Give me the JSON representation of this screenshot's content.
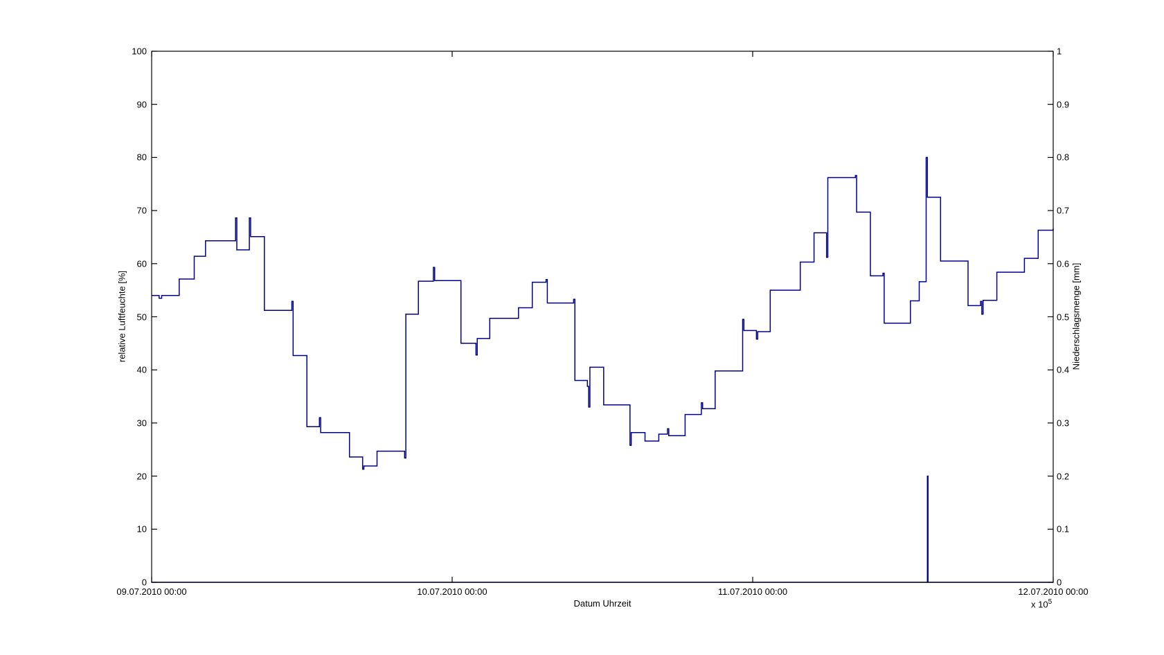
{
  "figure": {
    "background": "#ffffff",
    "axis_color": "#000000",
    "line_color": "#00008B"
  },
  "chart_data": {
    "type": "line",
    "subtype": "stairs",
    "title": "",
    "xlabel": "Datum Uhrzeit",
    "x_exponent_label": "x 10",
    "x_exponent_power": "5",
    "ylabel_left": "relative Luftfeuchte [%]",
    "ylabel_right": "Niederschlagsmenge [mm]",
    "grid": false,
    "legend": "none",
    "x_axis": {
      "unit": "hours from 09.07.2010 00:00",
      "range_hours": [
        0,
        72
      ],
      "tick_hours": [
        0,
        24,
        48,
        72
      ],
      "tick_labels": [
        "09.07.2010 00:00",
        "10.07.2010 00:00",
        "11.07.2010 00:00",
        "12.07.2010 00:00"
      ]
    },
    "y_axis_left": {
      "range": [
        0,
        100
      ],
      "tick_values": [
        0,
        10,
        20,
        30,
        40,
        50,
        60,
        70,
        80,
        90,
        100
      ],
      "tick_labels": [
        "0",
        "10",
        "20",
        "30",
        "40",
        "50",
        "60",
        "70",
        "80",
        "90",
        "100"
      ]
    },
    "y_axis_right": {
      "range": [
        0,
        1
      ],
      "tick_values": [
        0,
        0.1,
        0.2,
        0.3,
        0.4,
        0.5,
        0.6,
        0.7,
        0.8,
        0.9,
        1
      ],
      "tick_labels": [
        "0",
        "0.1",
        "0.2",
        "0.3",
        "0.4",
        "0.5",
        "0.6",
        "0.7",
        "0.8",
        "0.9",
        "1"
      ]
    },
    "series": [
      {
        "name": "relative Luftfeuchte",
        "axis": "left",
        "color": "#00008B",
        "points": [
          [
            0.0,
            54.0
          ],
          [
            0.6,
            53.5
          ],
          [
            0.8,
            54.0
          ],
          [
            2.2,
            57.1
          ],
          [
            3.4,
            61.4
          ],
          [
            4.3,
            64.3
          ],
          [
            6.7,
            68.6
          ],
          [
            6.8,
            62.6
          ],
          [
            7.8,
            68.6
          ],
          [
            7.9,
            65.1
          ],
          [
            9.0,
            51.2
          ],
          [
            11.2,
            52.9
          ],
          [
            11.3,
            42.7
          ],
          [
            12.4,
            29.3
          ],
          [
            13.4,
            31.0
          ],
          [
            13.5,
            28.2
          ],
          [
            15.8,
            23.6
          ],
          [
            16.85,
            21.3
          ],
          [
            16.95,
            21.9
          ],
          [
            18.0,
            24.7
          ],
          [
            20.2,
            23.4
          ],
          [
            20.3,
            50.5
          ],
          [
            21.3,
            56.7
          ],
          [
            22.5,
            59.3
          ],
          [
            22.6,
            56.8
          ],
          [
            24.7,
            45.0
          ],
          [
            25.9,
            42.8
          ],
          [
            26.0,
            45.9
          ],
          [
            27.0,
            49.7
          ],
          [
            29.3,
            51.7
          ],
          [
            30.4,
            56.5
          ],
          [
            31.5,
            57.0
          ],
          [
            31.6,
            52.6
          ],
          [
            33.7,
            53.3
          ],
          [
            33.8,
            38.0
          ],
          [
            34.8,
            36.9
          ],
          [
            34.9,
            33.0
          ],
          [
            35.0,
            40.5
          ],
          [
            36.1,
            33.4
          ],
          [
            38.2,
            25.8
          ],
          [
            38.3,
            28.2
          ],
          [
            39.4,
            26.6
          ],
          [
            40.5,
            27.9
          ],
          [
            41.2,
            28.9
          ],
          [
            41.3,
            27.6
          ],
          [
            42.6,
            31.6
          ],
          [
            43.9,
            33.8
          ],
          [
            44.0,
            32.7
          ],
          [
            45.0,
            39.8
          ],
          [
            47.2,
            49.5
          ],
          [
            47.3,
            47.4
          ],
          [
            48.3,
            45.8
          ],
          [
            48.4,
            47.2
          ],
          [
            49.4,
            55.0
          ],
          [
            51.8,
            60.3
          ],
          [
            52.9,
            65.8
          ],
          [
            53.9,
            61.2
          ],
          [
            54.0,
            76.2
          ],
          [
            56.2,
            76.6
          ],
          [
            56.3,
            69.7
          ],
          [
            57.4,
            57.7
          ],
          [
            58.4,
            58.2
          ],
          [
            58.5,
            48.8
          ],
          [
            60.6,
            53.0
          ],
          [
            61.3,
            56.6
          ],
          [
            61.85,
            80.0
          ],
          [
            61.95,
            72.5
          ],
          [
            63.0,
            60.5
          ],
          [
            65.2,
            52.1
          ],
          [
            66.2,
            52.9
          ],
          [
            66.3,
            50.5
          ],
          [
            66.4,
            53.1
          ],
          [
            67.5,
            58.4
          ],
          [
            69.7,
            61.0
          ],
          [
            70.8,
            66.3
          ],
          [
            72.0,
            66.6
          ]
        ]
      },
      {
        "name": "Niederschlagsmenge",
        "axis": "right",
        "color": "#00008B",
        "points": [
          [
            0.0,
            0
          ],
          [
            61.9,
            0
          ],
          [
            61.95,
            0.2
          ],
          [
            62.0,
            0
          ],
          [
            72.0,
            0
          ]
        ]
      }
    ]
  }
}
